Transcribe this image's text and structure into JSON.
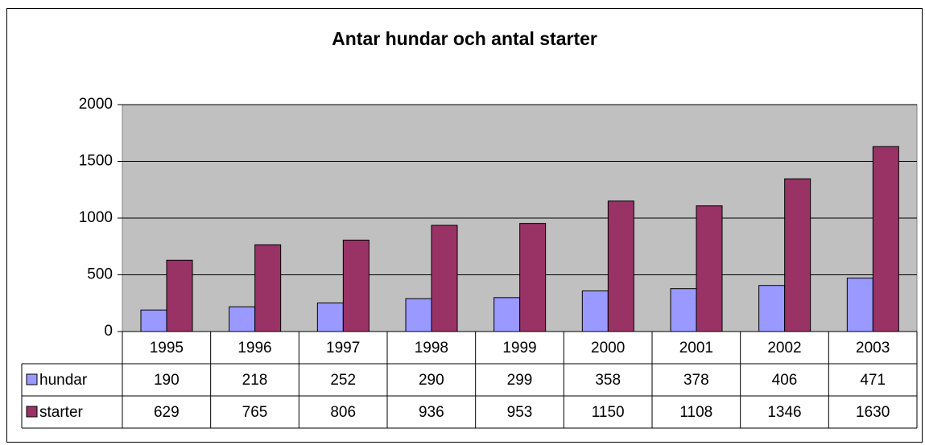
{
  "chart_data": {
    "type": "bar",
    "title": "Antar hundar och antal starter",
    "categories": [
      "1995",
      "1996",
      "1997",
      "1998",
      "1999",
      "2000",
      "2001",
      "2002",
      "2003"
    ],
    "series": [
      {
        "name": "hundar",
        "color": "#9999ff",
        "values": [
          190,
          218,
          252,
          290,
          299,
          358,
          378,
          406,
          471
        ]
      },
      {
        "name": "starter",
        "color": "#993366",
        "values": [
          629,
          765,
          806,
          936,
          953,
          1150,
          1108,
          1346,
          1630
        ]
      }
    ],
    "ylim": [
      0,
      2000
    ],
    "yticks": [
      0,
      500,
      1000,
      1500,
      2000
    ],
    "grid": true,
    "plot_background": "#c0c0c0"
  }
}
